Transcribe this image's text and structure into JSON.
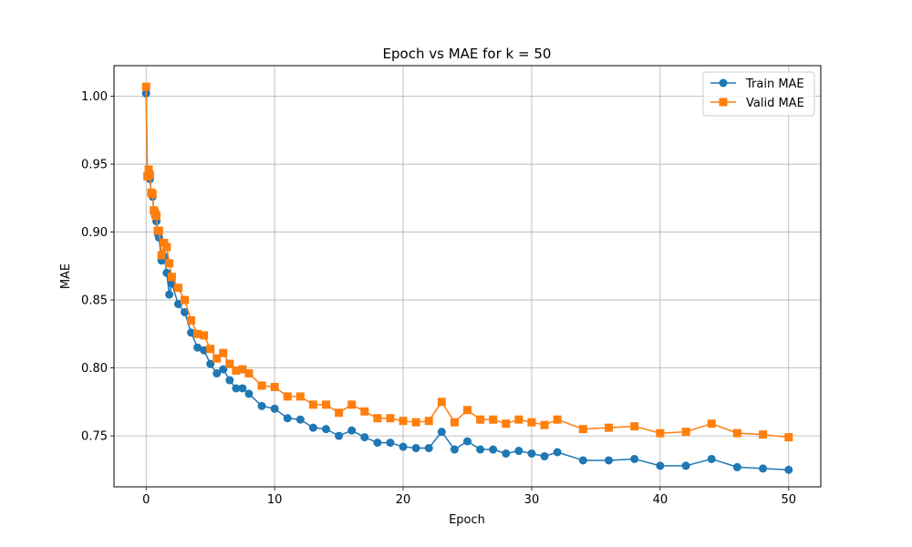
{
  "chart_data": {
    "type": "line",
    "title": "Epoch vs MAE for k = 50",
    "xlabel": "Epoch",
    "ylabel": "MAE",
    "xlim": [
      -2.5,
      52.5
    ],
    "ylim": [
      0.7125,
      1.0225
    ],
    "xticks": [
      0,
      10,
      20,
      30,
      40,
      50
    ],
    "yticks": [
      0.75,
      0.8,
      0.85,
      0.9,
      0.95,
      1.0
    ],
    "grid": true,
    "legend_position": "top-right",
    "series": [
      {
        "name": "Train MAE",
        "color": "#1f77b4",
        "marker": "circle",
        "x": [
          0,
          0.1,
          0.2,
          0.3,
          0.4,
          0.5,
          0.6,
          0.7,
          0.8,
          0.9,
          1.0,
          1.2,
          1.4,
          1.6,
          1.8,
          2.0,
          2.5,
          3.0,
          3.5,
          4.0,
          4.5,
          5.0,
          5.5,
          6.0,
          6.5,
          7.0,
          7.5,
          8.0,
          9,
          10,
          11,
          12,
          13,
          14,
          15,
          16,
          17,
          18,
          19,
          20,
          21,
          22,
          23,
          24,
          25,
          26,
          27,
          28,
          29,
          30,
          31,
          32,
          34,
          36,
          38,
          40,
          42,
          44,
          46,
          48,
          50
        ],
        "values": [
          1.002,
          0.942,
          0.944,
          0.939,
          0.928,
          0.926,
          0.915,
          0.912,
          0.908,
          0.899,
          0.896,
          0.879,
          0.882,
          0.87,
          0.854,
          0.862,
          0.847,
          0.841,
          0.826,
          0.815,
          0.813,
          0.803,
          0.796,
          0.799,
          0.791,
          0.785,
          0.785,
          0.781,
          0.772,
          0.77,
          0.763,
          0.762,
          0.756,
          0.755,
          0.75,
          0.754,
          0.749,
          0.745,
          0.745,
          0.742,
          0.741,
          0.741,
          0.753,
          0.74,
          0.746,
          0.74,
          0.74,
          0.737,
          0.739,
          0.737,
          0.735,
          0.738,
          0.732,
          0.732,
          0.733,
          0.728,
          0.728,
          0.733,
          0.727,
          0.726,
          0.725
        ]
      },
      {
        "name": "Valid MAE",
        "color": "#ff7f0e",
        "marker": "square",
        "x": [
          0,
          0.1,
          0.2,
          0.3,
          0.4,
          0.5,
          0.6,
          0.7,
          0.8,
          0.9,
          1.0,
          1.2,
          1.4,
          1.6,
          1.8,
          2.0,
          2.5,
          3.0,
          3.5,
          4.0,
          4.5,
          5.0,
          5.5,
          6.0,
          6.5,
          7.0,
          7.5,
          8.0,
          9,
          10,
          11,
          12,
          13,
          14,
          15,
          16,
          17,
          18,
          19,
          20,
          21,
          22,
          23,
          24,
          25,
          26,
          27,
          28,
          29,
          30,
          31,
          32,
          34,
          36,
          38,
          40,
          42,
          44,
          46,
          48,
          50
        ],
        "values": [
          1.007,
          0.941,
          0.946,
          0.942,
          0.929,
          0.928,
          0.916,
          0.914,
          0.912,
          0.901,
          0.901,
          0.883,
          0.892,
          0.889,
          0.877,
          0.867,
          0.859,
          0.85,
          0.835,
          0.825,
          0.824,
          0.814,
          0.807,
          0.811,
          0.803,
          0.798,
          0.799,
          0.796,
          0.787,
          0.786,
          0.779,
          0.779,
          0.773,
          0.773,
          0.767,
          0.773,
          0.768,
          0.763,
          0.763,
          0.761,
          0.76,
          0.761,
          0.775,
          0.76,
          0.769,
          0.762,
          0.762,
          0.759,
          0.762,
          0.76,
          0.758,
          0.762,
          0.755,
          0.756,
          0.757,
          0.752,
          0.753,
          0.759,
          0.752,
          0.751,
          0.749
        ]
      }
    ]
  }
}
